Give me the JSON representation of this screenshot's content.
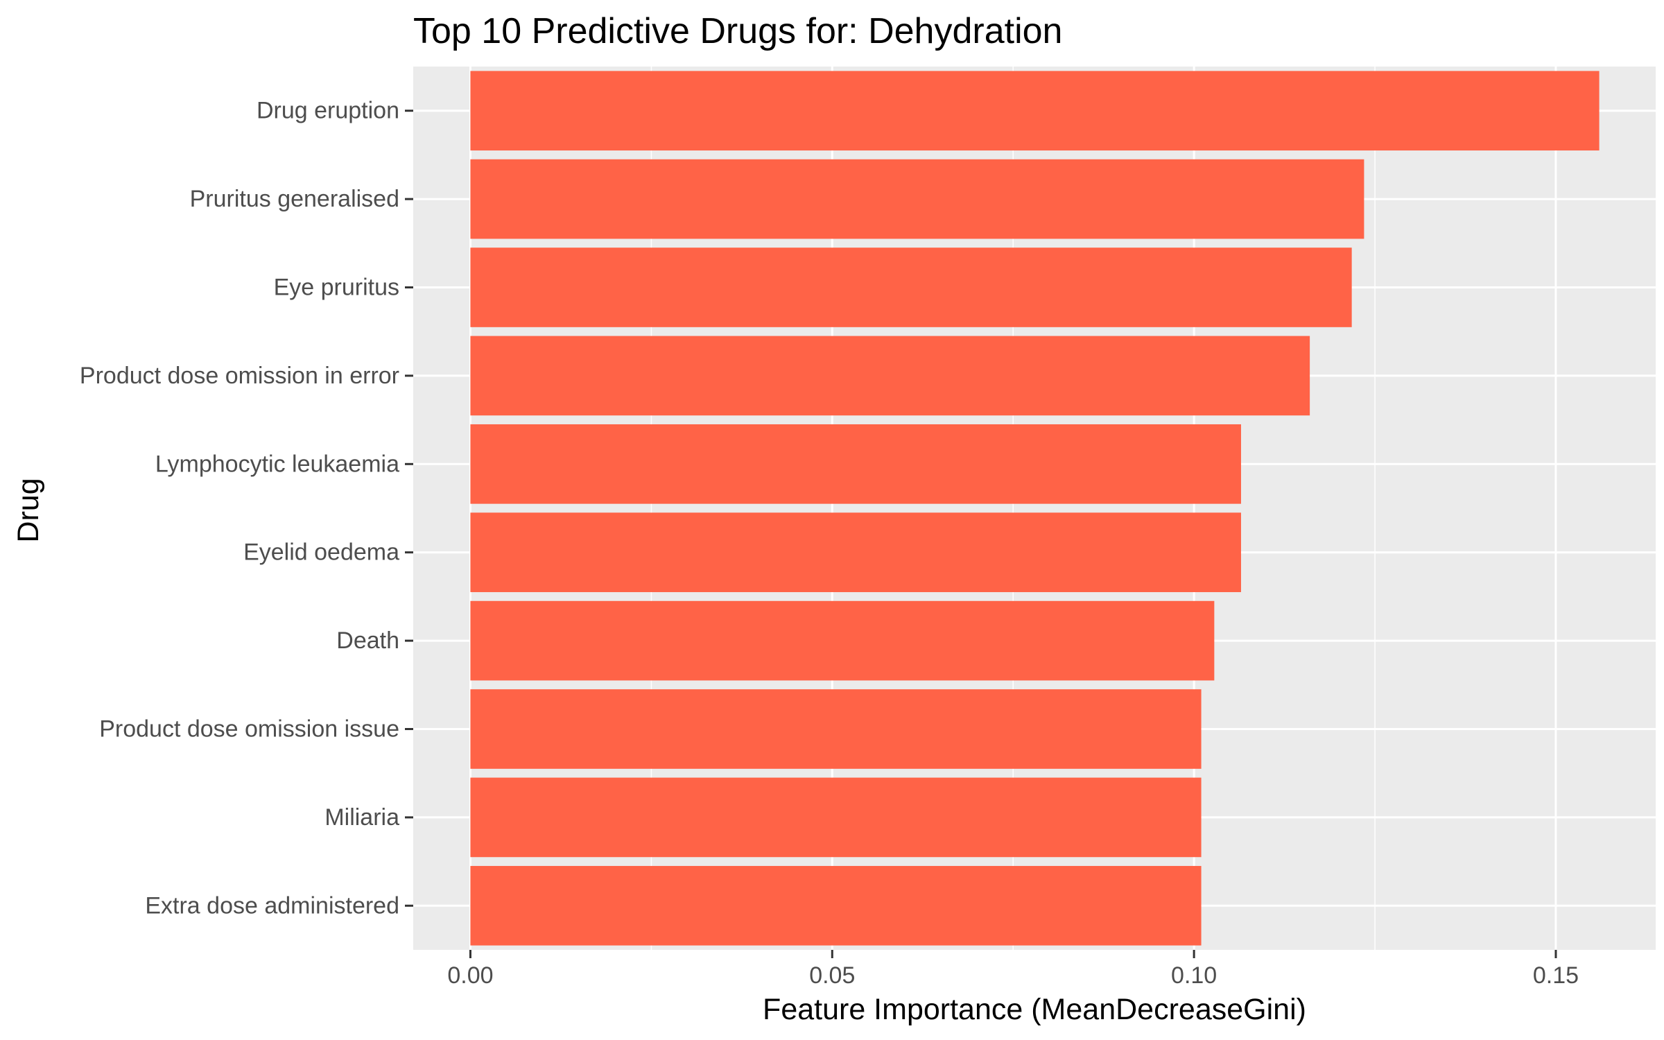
{
  "chart_data": {
    "type": "bar",
    "orientation": "horizontal",
    "title": "Top 10 Predictive Drugs for: Dehydration",
    "xlabel": "Feature Importance (MeanDecreaseGini)",
    "ylabel": "Drug",
    "categories": [
      "Drug eruption",
      "Pruritus generalised",
      "Eye pruritus",
      "Product dose omission in error",
      "Lymphocytic leukaemia",
      "Eyelid oedema",
      "Death",
      "Product dose omission issue",
      "Miliaria",
      "Extra dose administered"
    ],
    "values": [
      0.156,
      0.1235,
      0.1218,
      0.116,
      0.1065,
      0.1065,
      0.1028,
      0.101,
      0.101,
      0.101
    ],
    "xlim": [
      -0.0079,
      0.1638
    ],
    "xticks": [
      0,
      0.05,
      0.1,
      0.15
    ],
    "xtick_labels": [
      "0.00",
      "0.05",
      "0.10",
      "0.15"
    ],
    "bar_color": "#FF6347",
    "panel_background": "#EBEBEB",
    "grid": true,
    "legend": "none"
  }
}
